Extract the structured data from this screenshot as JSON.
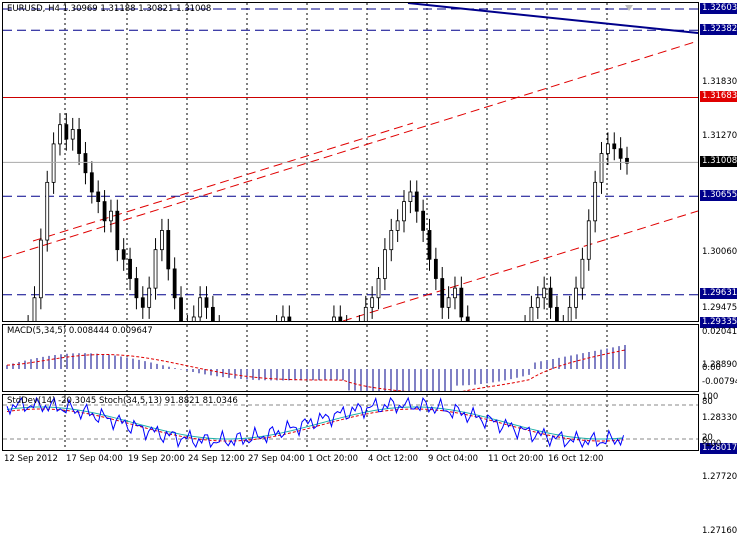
{
  "main": {
    "title": "EURUSD, H4  1.30969 1.31188 1.30821 1.31008",
    "price_ticks": [
      "1.32603",
      "1.32382",
      "1.31830",
      "1.31683",
      "1.31270",
      "1.31008",
      "1.30655",
      "1.30060",
      "1.29631",
      "1.29475",
      "1.29335",
      "1.28890",
      "1.28330",
      "1.28017",
      "1.27720",
      "1.27160"
    ],
    "hlines": [
      {
        "price": "1.32603",
        "color": "#00008b",
        "style": "dash",
        "tag_bg": "#00008b"
      },
      {
        "price": "1.32382",
        "color": "#00008b",
        "style": "dash",
        "tag_bg": "#00008b"
      },
      {
        "price": "1.31683",
        "color": "#cc0000",
        "style": "solid",
        "tag_bg": "#e00000"
      },
      {
        "price": "1.30655",
        "color": "#00008b",
        "style": "dash",
        "tag_bg": "#00008b"
      },
      {
        "price": "1.29631",
        "color": "#00008b",
        "style": "dash",
        "tag_bg": "#00008b"
      },
      {
        "price": "1.29335",
        "color": "#00008b",
        "style": "dash",
        "tag_bg": "#00008b"
      },
      {
        "price": "1.28017",
        "color": "#00008b",
        "style": "dash",
        "tag_bg": "#00008b"
      }
    ],
    "current_price": "1.31008"
  },
  "macd": {
    "title": "MACD(5,34,5) 0.008444 0.009647",
    "ticks": [
      "0.020413",
      "0.00",
      "-0.00794"
    ]
  },
  "stoch": {
    "title": "StdDev(14) -20.3045  Stoch(34,5,13) 91.8821 81.0346",
    "ticks": [
      "100",
      "80",
      "20",
      "0",
      "-100"
    ]
  },
  "time_labels": [
    "12 Sep 2012",
    "17 Sep 04:00",
    "19 Sep 20:00",
    "24 Sep 12:00",
    "27 Sep 04:00",
    "1 Oct 20:00",
    "4 Oct 12:00",
    "9 Oct 04:00",
    "11 Oct 20:00",
    "16 Oct 12:00"
  ],
  "colors": {
    "candle": "#000000",
    "trend_red": "#e00000",
    "trend_blue": "#00008b",
    "macd_bars": "#00008b",
    "signal": "#e00000",
    "stoch_main": "#0000ff",
    "stoch_signal": "#20b2aa"
  }
}
